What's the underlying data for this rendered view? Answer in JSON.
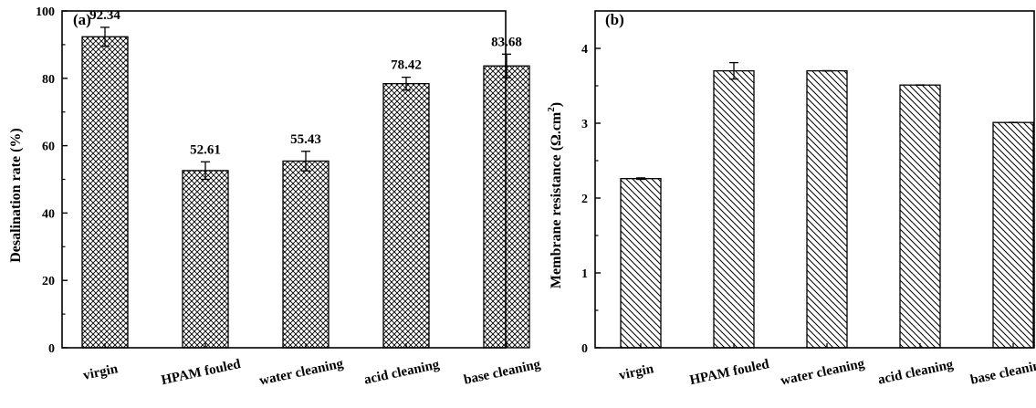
{
  "chart_data": [
    {
      "type": "bar",
      "panel_label": "(a)",
      "categories": [
        "virgin",
        "HPAM fouled",
        "water cleaning",
        "acid cleaning",
        "base cleaning"
      ],
      "values": [
        92.34,
        52.61,
        55.43,
        78.42,
        83.68
      ],
      "errors": [
        2.8,
        2.6,
        2.9,
        1.9,
        3.5
      ],
      "data_labels": [
        "92.34",
        "52.61",
        "55.43",
        "78.42",
        "83.68"
      ],
      "ylabel": "Desalination rate (%)",
      "xlabel": "",
      "ylim": [
        0,
        100
      ],
      "yticks": [
        0,
        20,
        40,
        60,
        80,
        100
      ],
      "pattern": "crosshatch",
      "grid": false
    },
    {
      "type": "bar",
      "panel_label": "(b)",
      "categories": [
        "virgin",
        "HPAM fouled",
        "water cleaning",
        "acid cleaning",
        "base cleaning"
      ],
      "values": [
        2.26,
        3.7,
        3.7,
        3.51,
        3.01
      ],
      "errors": [
        0.01,
        0.11,
        0.0,
        0.0,
        0.0
      ],
      "ylabel": "Membrane resistance (Ω.cm²)",
      "ylabel_parts": {
        "main": "Membrane resistance (Ω.cm",
        "sup": "2",
        "close": ")"
      },
      "xlabel": "",
      "ylim": [
        0,
        4.5
      ],
      "yticks": [
        0,
        1,
        2,
        3,
        4
      ],
      "pattern": "diagonal",
      "grid": false
    }
  ]
}
